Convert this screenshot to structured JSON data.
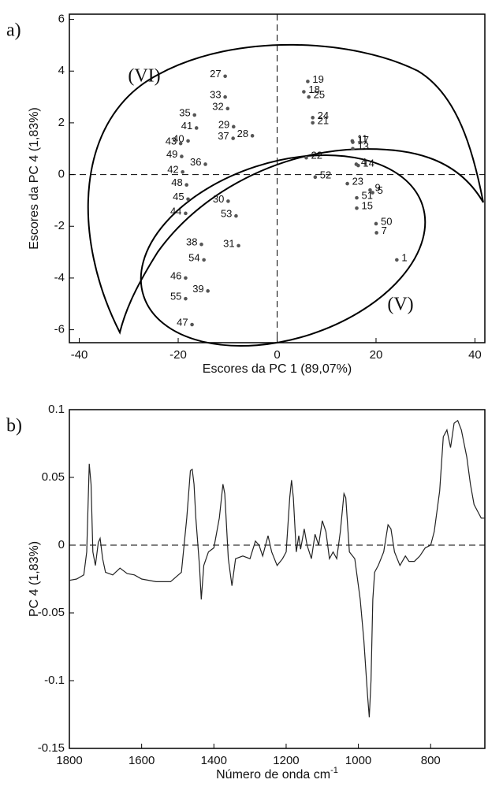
{
  "chart_data": [
    {
      "type": "scatter",
      "panel": "a)",
      "xlabel": "Escores da PC 1 (89,07%)",
      "ylabel": "Escores da PC 4 (1,83%)",
      "annotations": [
        "(VI)",
        "(V)"
      ],
      "color": "#555555",
      "xlim": [
        -42,
        42
      ],
      "ylim": [
        -6.5,
        6.2
      ],
      "xticks": [
        -40,
        -20,
        0,
        20,
        40
      ],
      "yticks": [
        -6,
        -4,
        -2,
        0,
        2,
        4,
        6
      ],
      "labels": [
        "27",
        "33",
        "32",
        "29",
        "37",
        "28",
        "35",
        "41",
        "40",
        "43",
        "49",
        "42",
        "48",
        "36",
        "45",
        "44",
        "30",
        "53",
        "38",
        "31",
        "54",
        "46",
        "39",
        "55",
        "47",
        "19",
        "18",
        "25",
        "24",
        "21",
        "11",
        "17",
        "13",
        "22",
        "4",
        "52",
        "14",
        "9",
        "5",
        "23",
        "51",
        "15",
        "50",
        "7",
        "1"
      ],
      "x": [
        -10.5,
        -10.5,
        -10,
        -8.8,
        -8.9,
        -5,
        -16.7,
        -16.3,
        -18,
        -19.5,
        -19.3,
        -19.1,
        -18.3,
        -14.5,
        -18,
        -18.5,
        -9.9,
        -8.3,
        -15.3,
        -7.8,
        -14.8,
        -18.5,
        -14,
        -18.5,
        -17.2,
        6.2,
        5.4,
        6.4,
        7.2,
        7.2,
        15.2,
        15.3,
        15.3,
        5.9,
        16,
        7.7,
        16.4,
        18.8,
        19.3,
        14.2,
        16.1,
        16.1,
        20,
        20.1,
        24.2
      ],
      "y": [
        3.8,
        3.0,
        2.55,
        1.85,
        1.4,
        1.5,
        2.3,
        1.8,
        1.3,
        1.2,
        0.7,
        0.1,
        -0.4,
        0.4,
        -0.95,
        -1.5,
        -1.03,
        -1.6,
        -2.7,
        -2.75,
        -3.3,
        -4.0,
        -4.5,
        -4.8,
        -5.8,
        3.6,
        3.2,
        3.0,
        2.2,
        2.0,
        1.3,
        1.25,
        1.0,
        0.65,
        0.4,
        -0.1,
        0.35,
        -0.6,
        -0.7,
        -0.35,
        -0.9,
        -1.3,
        -1.9,
        -2.25,
        -3.3
      ]
    },
    {
      "type": "line",
      "panel": "b)",
      "xlabel": "Número de onda cm",
      "xlabel_superscript": "-1",
      "ylabel": "PC 4 (1,83%)",
      "color": "#222222",
      "xlim": [
        1800,
        650
      ],
      "ylim": [
        -0.15,
        0.1
      ],
      "xticks": [
        1800,
        1600,
        1400,
        1200,
        1000,
        800
      ],
      "yticks": [
        -0.15,
        -0.1,
        -0.05,
        0,
        0.05,
        0.1
      ],
      "x": [
        1800,
        1780,
        1760,
        1752,
        1745,
        1740,
        1735,
        1728,
        1720,
        1715,
        1708,
        1700,
        1680,
        1660,
        1640,
        1620,
        1600,
        1560,
        1520,
        1490,
        1475,
        1465,
        1460,
        1455,
        1450,
        1440,
        1435,
        1428,
        1415,
        1400,
        1385,
        1375,
        1370,
        1360,
        1350,
        1340,
        1320,
        1300,
        1285,
        1275,
        1265,
        1250,
        1240,
        1225,
        1210,
        1200,
        1190,
        1185,
        1180,
        1172,
        1165,
        1160,
        1150,
        1142,
        1130,
        1120,
        1110,
        1100,
        1090,
        1080,
        1070,
        1060,
        1050,
        1040,
        1035,
        1025,
        1010,
        995,
        985,
        975,
        970,
        965,
        960,
        955,
        945,
        930,
        918,
        910,
        900,
        885,
        870,
        860,
        845,
        830,
        815,
        800,
        790,
        775,
        765,
        755,
        745,
        735,
        725,
        715,
        700,
        690,
        680,
        670,
        660,
        650
      ],
      "values": [
        -0.026,
        -0.025,
        -0.022,
        -0.005,
        0.06,
        0.045,
        -0.005,
        -0.015,
        0.002,
        0.005,
        -0.01,
        -0.02,
        -0.022,
        -0.017,
        -0.021,
        -0.022,
        -0.025,
        -0.027,
        -0.027,
        -0.02,
        0.02,
        0.055,
        0.056,
        0.045,
        0.02,
        -0.015,
        -0.04,
        -0.015,
        -0.005,
        -0.002,
        0.02,
        0.045,
        0.038,
        -0.01,
        -0.03,
        -0.01,
        -0.008,
        -0.01,
        0.003,
        0,
        -0.008,
        0.007,
        -0.005,
        -0.015,
        -0.01,
        -0.005,
        0.035,
        0.048,
        0.035,
        -0.005,
        0.007,
        -0.003,
        0.012,
        0,
        -0.01,
        0.008,
        0,
        0.018,
        0.01,
        -0.01,
        -0.005,
        -0.01,
        0.01,
        0.038,
        0.035,
        -0.005,
        -0.01,
        -0.04,
        -0.07,
        -0.11,
        -0.127,
        -0.1,
        -0.04,
        -0.02,
        -0.015,
        -0.005,
        0.015,
        0.012,
        -0.005,
        -0.015,
        -0.008,
        -0.012,
        -0.012,
        -0.008,
        -0.002,
        0,
        0.01,
        0.04,
        0.08,
        0.085,
        0.072,
        0.09,
        0.092,
        0.085,
        0.065,
        0.045,
        0.03,
        0.025,
        0.02,
        0.02
      ]
    }
  ]
}
